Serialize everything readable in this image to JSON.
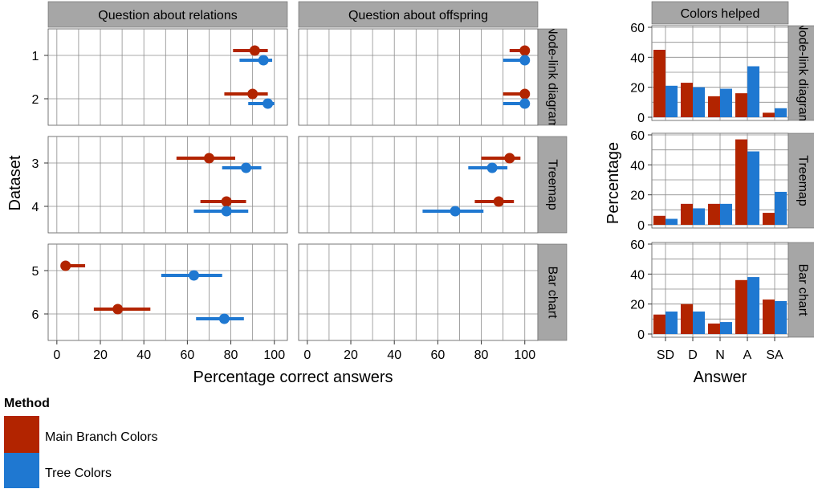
{
  "colors": {
    "main_branch": "#b22400",
    "tree": "#1f78d1"
  },
  "chart_data": [
    {
      "type": "scatter",
      "subtype": "dot-with-confidence-interval",
      "xlabel": "Percentage correct answers",
      "ylabel": "Dataset",
      "xlim": [
        -4,
        106
      ],
      "xticks": [
        "0",
        "20",
        "40",
        "60",
        "80",
        "100"
      ],
      "columns": [
        "Question about relations",
        "Question about offspring"
      ],
      "rows": [
        "Node-link diagram",
        "Treemap",
        "Bar chart"
      ],
      "grid": true,
      "series": [
        {
          "name": "Main Branch Colors",
          "points": [
            {
              "col": 0,
              "row": 0,
              "dataset": "1",
              "value": 91,
              "low": 81,
              "high": 97
            },
            {
              "col": 0,
              "row": 0,
              "dataset": "2",
              "value": 90,
              "low": 77,
              "high": 97
            },
            {
              "col": 0,
              "row": 1,
              "dataset": "3",
              "value": 70,
              "low": 55,
              "high": 82
            },
            {
              "col": 0,
              "row": 1,
              "dataset": "4",
              "value": 78,
              "low": 66,
              "high": 87
            },
            {
              "col": 0,
              "row": 2,
              "dataset": "5",
              "value": 4,
              "low": 2,
              "high": 13
            },
            {
              "col": 0,
              "row": 2,
              "dataset": "6",
              "value": 28,
              "low": 17,
              "high": 43
            },
            {
              "col": 1,
              "row": 0,
              "dataset": "1",
              "value": 100,
              "low": 93,
              "high": 100
            },
            {
              "col": 1,
              "row": 0,
              "dataset": "2",
              "value": 100,
              "low": 90,
              "high": 100
            },
            {
              "col": 1,
              "row": 1,
              "dataset": "3",
              "value": 93,
              "low": 80,
              "high": 98
            },
            {
              "col": 1,
              "row": 1,
              "dataset": "4",
              "value": 88,
              "low": 77,
              "high": 95
            }
          ]
        },
        {
          "name": "Tree Colors",
          "points": [
            {
              "col": 0,
              "row": 0,
              "dataset": "1",
              "value": 95,
              "low": 84,
              "high": 99
            },
            {
              "col": 0,
              "row": 0,
              "dataset": "2",
              "value": 97,
              "low": 88,
              "high": 100
            },
            {
              "col": 0,
              "row": 1,
              "dataset": "3",
              "value": 87,
              "low": 76,
              "high": 94
            },
            {
              "col": 0,
              "row": 1,
              "dataset": "4",
              "value": 78,
              "low": 63,
              "high": 88
            },
            {
              "col": 0,
              "row": 2,
              "dataset": "5",
              "value": 63,
              "low": 48,
              "high": 76
            },
            {
              "col": 0,
              "row": 2,
              "dataset": "6",
              "value": 77,
              "low": 64,
              "high": 86
            },
            {
              "col": 1,
              "row": 0,
              "dataset": "1",
              "value": 100,
              "low": 90,
              "high": 100
            },
            {
              "col": 1,
              "row": 0,
              "dataset": "2",
              "value": 100,
              "low": 90,
              "high": 100
            },
            {
              "col": 1,
              "row": 1,
              "dataset": "3",
              "value": 85,
              "low": 74,
              "high": 92
            },
            {
              "col": 1,
              "row": 1,
              "dataset": "4",
              "value": 68,
              "low": 53,
              "high": 81
            }
          ]
        }
      ]
    },
    {
      "type": "bar",
      "title": "Colors helped",
      "xlabel": "Answer",
      "ylabel": "Percentage",
      "categories": [
        "SD",
        "D",
        "N",
        "A",
        "SA"
      ],
      "ylim": [
        0,
        60
      ],
      "yticks": [
        "0",
        "20",
        "40",
        "60"
      ],
      "rows": [
        "Node-link diagram",
        "Treemap",
        "Bar chart"
      ],
      "grid": true,
      "panels": [
        {
          "series": [
            {
              "name": "Main Branch Colors",
              "values": [
                45,
                23,
                14,
                16,
                3
              ]
            },
            {
              "name": "Tree Colors",
              "values": [
                21,
                20,
                19,
                34,
                6
              ]
            }
          ]
        },
        {
          "series": [
            {
              "name": "Main Branch Colors",
              "values": [
                6,
                14,
                14,
                57,
                8
              ]
            },
            {
              "name": "Tree Colors",
              "values": [
                4,
                11,
                14,
                49,
                22
              ]
            }
          ]
        },
        {
          "series": [
            {
              "name": "Main Branch Colors",
              "values": [
                13,
                20,
                7,
                36,
                23
              ]
            },
            {
              "name": "Tree Colors",
              "values": [
                15,
                15,
                8,
                38,
                22
              ]
            }
          ]
        }
      ]
    }
  ],
  "datasets": [
    [
      "1",
      "2"
    ],
    [
      "3",
      "4"
    ],
    [
      "5",
      "6"
    ]
  ],
  "legend": {
    "title": "Method",
    "items": [
      "Main Branch Colors",
      "Tree Colors"
    ]
  }
}
